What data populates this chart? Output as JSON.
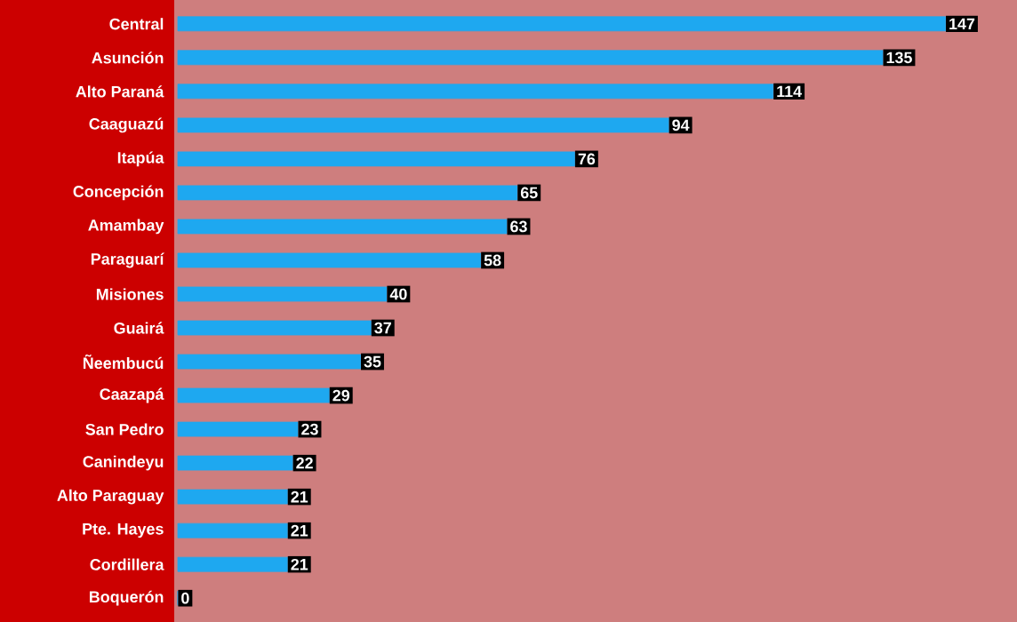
{
  "chart_data": {
    "type": "bar",
    "orientation": "horizontal",
    "categories": [
      "Central",
      "Asunción",
      "Alto Paraná",
      "Caaguazú",
      "Itapúa",
      "Concepción",
      "Amambay",
      "Paraguarí",
      "Misiones",
      "Guairá",
      "Ñeembucú",
      "Caazapá",
      "San Pedro",
      "Canindeyu",
      "Alto Paraguay",
      "Pte. Hayes",
      "Cordillera",
      "Boquerón"
    ],
    "values": [
      147,
      135,
      114,
      94,
      76,
      65,
      63,
      58,
      40,
      37,
      35,
      29,
      23,
      22,
      21,
      21,
      21,
      0
    ],
    "color": "#1ea8f0",
    "xlim": [
      0,
      160
    ],
    "data_labels": true,
    "tick_labels": "y"
  }
}
